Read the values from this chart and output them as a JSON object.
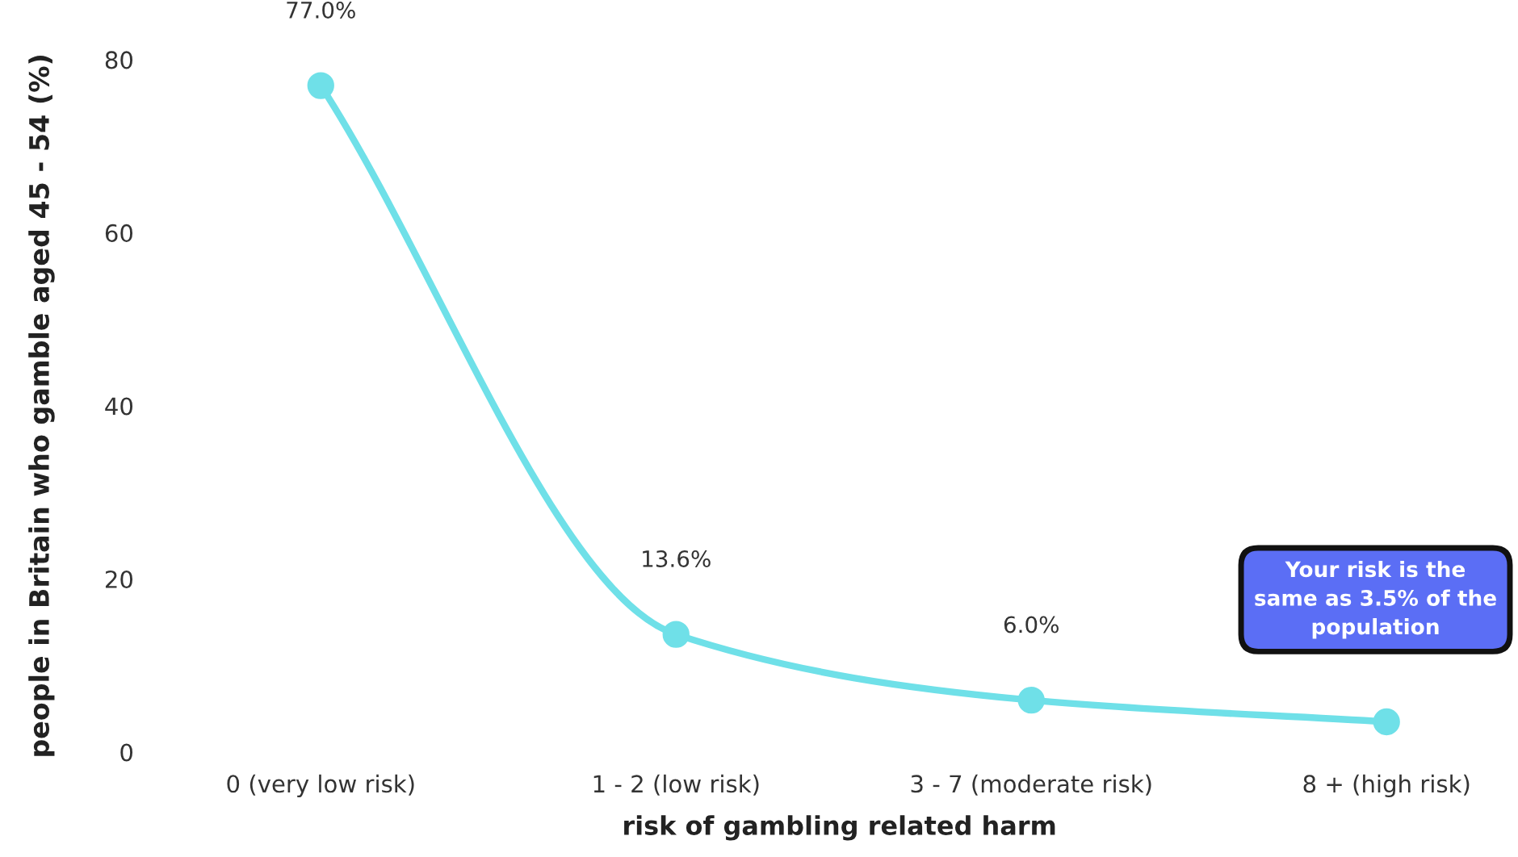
{
  "chart_data": {
    "type": "line",
    "xlabel": "risk of gambling related harm",
    "ylabel": "people in Britain who gamble aged 45 - 54 (%)",
    "categories": [
      "0 (very low risk)",
      "1 - 2 (low risk)",
      "3 - 7 (moderate risk)",
      "8 + (high risk)"
    ],
    "series": [
      {
        "color": "#6fe0e8",
        "values": [
          77.0,
          13.6,
          6.0,
          3.5
        ],
        "value_labels": [
          "77.0%",
          "13.6%",
          "6.0%",
          null
        ]
      }
    ],
    "ylim": [
      0,
      80
    ],
    "yticks": [
      0,
      20,
      40,
      60,
      80
    ],
    "marker": "circle",
    "line_style": "solid",
    "grid": false,
    "legend": false,
    "annotations": [
      "Your risk is the\nsame as 3.5% of the\npopulation"
    ]
  }
}
